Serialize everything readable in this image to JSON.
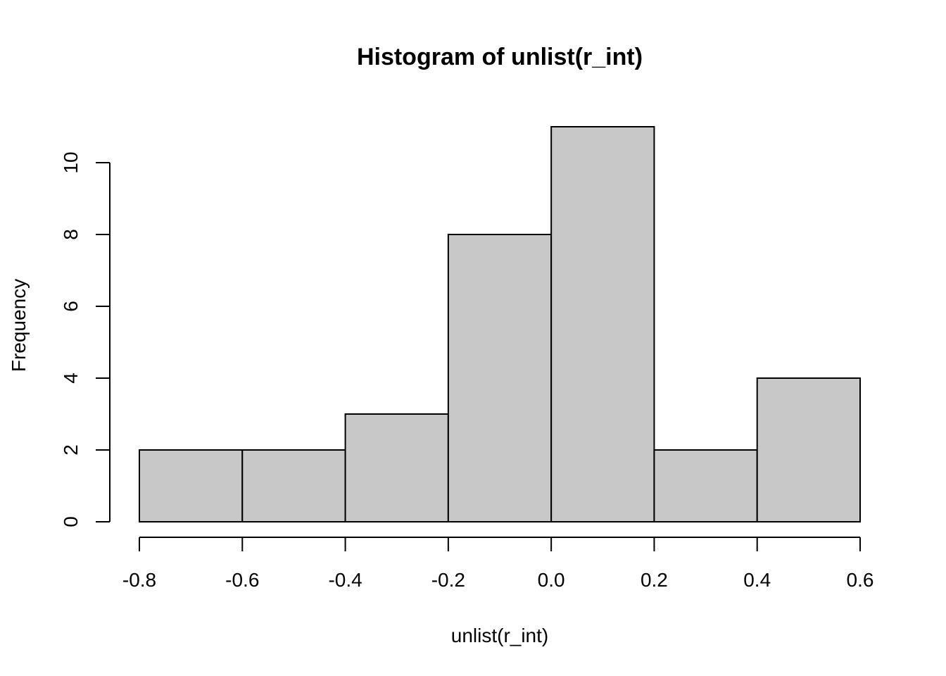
{
  "chart_data": {
    "type": "bar",
    "title": "Histogram of unlist(r_int)",
    "xlabel": "unlist(r_int)",
    "ylabel": "Frequency",
    "bins": [
      {
        "from": -0.8,
        "to": -0.6,
        "count": 2
      },
      {
        "from": -0.6,
        "to": -0.4,
        "count": 2
      },
      {
        "from": -0.4,
        "to": -0.2,
        "count": 3
      },
      {
        "from": -0.2,
        "to": 0.0,
        "count": 8
      },
      {
        "from": 0.0,
        "to": 0.2,
        "count": 11
      },
      {
        "from": 0.2,
        "to": 0.4,
        "count": 2
      },
      {
        "from": 0.4,
        "to": 0.6,
        "count": 4
      }
    ],
    "xlim": [
      -0.8,
      0.6
    ],
    "ylim": [
      0,
      11
    ],
    "x_ticks": [
      "-0.8",
      "-0.6",
      "-0.4",
      "-0.2",
      "0.0",
      "0.2",
      "0.4",
      "0.6"
    ],
    "y_ticks": [
      "0",
      "2",
      "4",
      "6",
      "8",
      "10"
    ],
    "bar_fill": "#c8c8c8",
    "bar_stroke": "#000000",
    "grid": false,
    "legend": "none"
  }
}
